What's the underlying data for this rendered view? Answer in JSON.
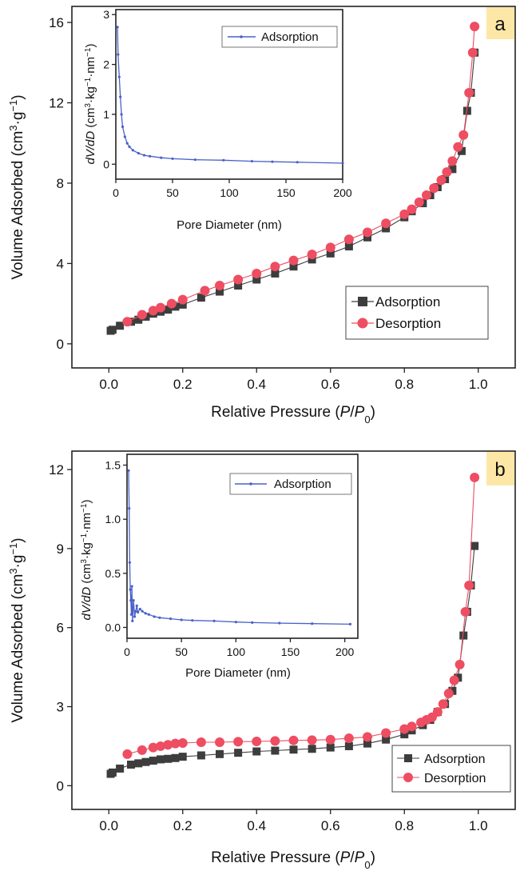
{
  "chart_data": [
    {
      "panel": "a",
      "type": "scatter",
      "title": "",
      "xlabel": "Relative Pressure (P/P0)",
      "xlabel_parts": {
        "before": "Relative Pressure (",
        "italic_p": "P",
        "slash": "/",
        "italic_p0": "P",
        "sub": "0",
        "after": ")"
      },
      "ylabel": "Volume Adsorbed (cm3·g−1)",
      "ylabel_parts": {
        "before": "Volume Adsorbed (cm",
        "sup1": "3",
        "mid": "·g",
        "sup2": "−1",
        "after": ")"
      },
      "xlim": [
        -0.1,
        1.1
      ],
      "ylim": [
        -1.2,
        16.8
      ],
      "xticks": [
        0.0,
        0.2,
        0.4,
        0.6,
        0.8,
        1.0
      ],
      "xtick_labels": [
        "0.0",
        "0.2",
        "0.4",
        "0.6",
        "0.8",
        "1.0"
      ],
      "yticks": [
        0,
        4,
        8,
        12,
        16
      ],
      "ytick_labels": [
        "0",
        "4",
        "8",
        "12",
        "16"
      ],
      "legend_position": "bottom-right",
      "series": [
        {
          "name": "Adsorption",
          "color": "#3d3d3d",
          "marker": "square",
          "x": [
            0.005,
            0.01,
            0.03,
            0.06,
            0.08,
            0.1,
            0.12,
            0.14,
            0.16,
            0.18,
            0.2,
            0.25,
            0.3,
            0.35,
            0.4,
            0.45,
            0.5,
            0.55,
            0.6,
            0.65,
            0.7,
            0.75,
            0.8,
            0.82,
            0.85,
            0.87,
            0.89,
            0.91,
            0.93,
            0.955,
            0.97,
            0.98,
            0.99
          ],
          "y": [
            0.65,
            0.7,
            0.9,
            1.1,
            1.2,
            1.35,
            1.5,
            1.6,
            1.7,
            1.85,
            1.95,
            2.3,
            2.6,
            2.9,
            3.2,
            3.5,
            3.85,
            4.2,
            4.5,
            4.85,
            5.3,
            5.75,
            6.3,
            6.6,
            7.0,
            7.4,
            7.8,
            8.2,
            8.7,
            9.6,
            11.6,
            12.5,
            14.5
          ]
        },
        {
          "name": "Desorption",
          "color": "#ee4d62",
          "marker": "circle",
          "x": [
            0.99,
            0.985,
            0.975,
            0.96,
            0.945,
            0.93,
            0.915,
            0.9,
            0.88,
            0.86,
            0.84,
            0.82,
            0.8,
            0.75,
            0.7,
            0.65,
            0.6,
            0.55,
            0.5,
            0.45,
            0.4,
            0.35,
            0.3,
            0.26,
            0.2,
            0.17,
            0.14,
            0.12,
            0.09,
            0.05
          ],
          "y": [
            15.8,
            14.5,
            12.5,
            10.4,
            9.8,
            9.1,
            8.55,
            8.15,
            7.75,
            7.4,
            7.05,
            6.7,
            6.45,
            6.0,
            5.55,
            5.2,
            4.8,
            4.45,
            4.15,
            3.85,
            3.5,
            3.2,
            2.9,
            2.65,
            2.2,
            2.0,
            1.8,
            1.65,
            1.45,
            1.1
          ]
        }
      ],
      "inset": {
        "type": "line",
        "xlabel": "Pore Diameter (nm)",
        "ylabel": "dV/dD (cm3·kg−1·nm−1)",
        "ylabel_parts": {
          "italic": "dV/dD",
          "before": " (cm",
          "sup1": "3",
          "mid1": "·kg",
          "sup2": "−1",
          "mid2": "·nm",
          "sup3": "−1",
          "after": ")"
        },
        "xlim": [
          0,
          200
        ],
        "ylim": [
          -0.3,
          3.1
        ],
        "xticks": [
          0,
          50,
          100,
          150,
          200
        ],
        "xtick_labels": [
          "0",
          "50",
          "100",
          "150",
          "200"
        ],
        "yticks": [
          0,
          1,
          2,
          3
        ],
        "ytick_labels": [
          "0",
          "1",
          "2",
          "3"
        ],
        "legend_position": "top-right",
        "series": [
          {
            "name": "Adsorption",
            "color": "#4a61c8",
            "x": [
              1.5,
              2,
              3,
              4,
              5,
              6,
              8,
              10,
              12,
              15,
              20,
              25,
              30,
              40,
              50,
              70,
              95,
              120,
              138,
              160,
              200
            ],
            "y": [
              2.75,
              2.2,
              1.75,
              1.35,
              1.0,
              0.75,
              0.55,
              0.42,
              0.35,
              0.28,
              0.22,
              0.18,
              0.16,
              0.13,
              0.11,
              0.09,
              0.08,
              0.06,
              0.05,
              0.04,
              0.02
            ]
          }
        ]
      }
    },
    {
      "panel": "b",
      "type": "scatter",
      "title": "",
      "xlabel": "Relative Pressure (P/P0)",
      "xlabel_parts": {
        "before": "Relative Pressure (",
        "italic_p": "P",
        "slash": "/",
        "italic_p0": "P",
        "sub": "0",
        "after": ")"
      },
      "ylabel": "Volume Adsorbed (cm3·g−1)",
      "ylabel_parts": {
        "before": "Volume Adsorbed (cm",
        "sup1": "3",
        "mid": "·g",
        "sup2": "−1",
        "after": ")"
      },
      "xlim": [
        -0.1,
        1.1
      ],
      "ylim": [
        -0.9,
        12.7
      ],
      "xticks": [
        0.0,
        0.2,
        0.4,
        0.6,
        0.8,
        1.0
      ],
      "xtick_labels": [
        "0.0",
        "0.2",
        "0.4",
        "0.6",
        "0.8",
        "1.0"
      ],
      "yticks": [
        0,
        3,
        6,
        9,
        12
      ],
      "ytick_labels": [
        "0",
        "3",
        "6",
        "9",
        "12"
      ],
      "legend_position": "bottom-right",
      "series": [
        {
          "name": "Adsorption",
          "color": "#3d3d3d",
          "marker": "square",
          "x": [
            0.005,
            0.01,
            0.03,
            0.06,
            0.08,
            0.1,
            0.12,
            0.14,
            0.16,
            0.18,
            0.2,
            0.25,
            0.3,
            0.35,
            0.4,
            0.45,
            0.5,
            0.55,
            0.6,
            0.65,
            0.7,
            0.75,
            0.8,
            0.82,
            0.85,
            0.87,
            0.89,
            0.91,
            0.93,
            0.945,
            0.96,
            0.97,
            0.98,
            0.99
          ],
          "y": [
            0.45,
            0.5,
            0.65,
            0.8,
            0.85,
            0.9,
            0.95,
            1.0,
            1.02,
            1.05,
            1.1,
            1.15,
            1.2,
            1.25,
            1.3,
            1.33,
            1.37,
            1.4,
            1.45,
            1.5,
            1.6,
            1.75,
            1.95,
            2.1,
            2.3,
            2.5,
            2.8,
            3.1,
            3.6,
            4.1,
            5.7,
            6.6,
            7.6,
            9.1
          ]
        },
        {
          "name": "Desorption",
          "color": "#ee4d62",
          "marker": "circle",
          "x": [
            0.99,
            0.975,
            0.965,
            0.95,
            0.935,
            0.92,
            0.905,
            0.89,
            0.875,
            0.86,
            0.845,
            0.82,
            0.8,
            0.75,
            0.7,
            0.65,
            0.6,
            0.55,
            0.5,
            0.45,
            0.4,
            0.35,
            0.3,
            0.25,
            0.2,
            0.18,
            0.16,
            0.14,
            0.12,
            0.09,
            0.05
          ],
          "y": [
            11.7,
            7.6,
            6.6,
            4.6,
            4.0,
            3.5,
            3.1,
            2.8,
            2.6,
            2.5,
            2.4,
            2.25,
            2.15,
            2.0,
            1.85,
            1.8,
            1.75,
            1.73,
            1.72,
            1.7,
            1.68,
            1.67,
            1.65,
            1.65,
            1.62,
            1.6,
            1.55,
            1.5,
            1.45,
            1.35,
            1.2
          ]
        }
      ],
      "inset": {
        "type": "line",
        "xlabel": "Pore Diameter (nm)",
        "ylabel": "dV/dD (cm3·kg−1·nm−1)",
        "ylabel_parts": {
          "italic": "dV/dD",
          "before": " (cm",
          "sup1": "3",
          "mid1": "·kg",
          "sup2": "−1",
          "mid2": "·nm",
          "sup3": "−1",
          "after": ")"
        },
        "xlim": [
          0,
          212
        ],
        "ylim": [
          -0.1,
          1.6
        ],
        "xticks": [
          0,
          50,
          100,
          150,
          200
        ],
        "xtick_labels": [
          "0",
          "50",
          "100",
          "150",
          "200"
        ],
        "yticks": [
          0.0,
          0.5,
          1.0,
          1.5
        ],
        "ytick_labels": [
          "0.0",
          "0.5",
          "1.0",
          "1.5"
        ],
        "legend_position": "top-right",
        "series": [
          {
            "name": "Adsorption",
            "color": "#4a61c8",
            "x": [
              1.5,
              2,
              2.5,
              3,
              3.5,
              4,
              4.5,
              5,
              6,
              7,
              8,
              9,
              10,
              12,
              14,
              17,
              20,
              25,
              30,
              40,
              50,
              60,
              80,
              100,
              115,
              140,
              170,
              205
            ],
            "y": [
              1.45,
              1.1,
              0.6,
              0.35,
              0.25,
              0.12,
              0.38,
              0.06,
              0.25,
              0.1,
              0.15,
              0.2,
              0.14,
              0.17,
              0.15,
              0.13,
              0.12,
              0.1,
              0.09,
              0.08,
              0.07,
              0.065,
              0.06,
              0.05,
              0.045,
              0.04,
              0.035,
              0.03
            ]
          }
        ]
      }
    }
  ],
  "panel_labels": {
    "a": "a",
    "b": "b"
  },
  "colors": {
    "panel_label_bg": "#fce7a6",
    "frame": "#222222"
  }
}
